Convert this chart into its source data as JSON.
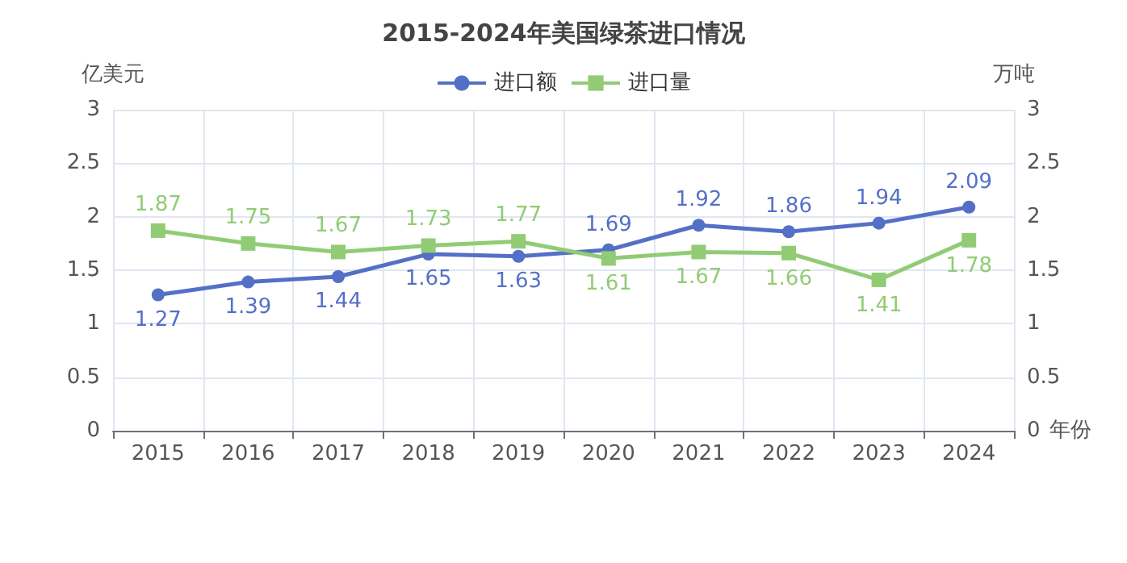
{
  "chart_data": {
    "type": "line",
    "title": "2015-2024年美国绿茶进口情况",
    "xlabel": "年份",
    "ylabel": "亿美元",
    "y2label": "万吨",
    "categories": [
      "2015",
      "2016",
      "2017",
      "2018",
      "2019",
      "2020",
      "2021",
      "2022",
      "2023",
      "2024"
    ],
    "series": [
      {
        "name": "进口额",
        "color": "#5470c6",
        "values": [
          1.27,
          1.39,
          1.44,
          1.65,
          1.63,
          1.69,
          1.92,
          1.86,
          1.94,
          2.09
        ]
      },
      {
        "name": "进口量",
        "color": "#91cc75",
        "marker": "square",
        "values": [
          1.87,
          1.75,
          1.67,
          1.73,
          1.77,
          1.61,
          1.67,
          1.66,
          1.41,
          1.78
        ]
      }
    ],
    "ylim": [
      0,
      3
    ],
    "yticks": [
      0,
      0.5,
      1,
      1.5,
      2,
      2.5,
      3
    ],
    "y2lim": [
      0,
      3
    ],
    "y2ticks": [
      0,
      0.5,
      1,
      1.5,
      2,
      2.5,
      3
    ],
    "grid": true,
    "legend": "top",
    "marker": "circle",
    "line_style": "solid",
    "data_labels": true
  }
}
